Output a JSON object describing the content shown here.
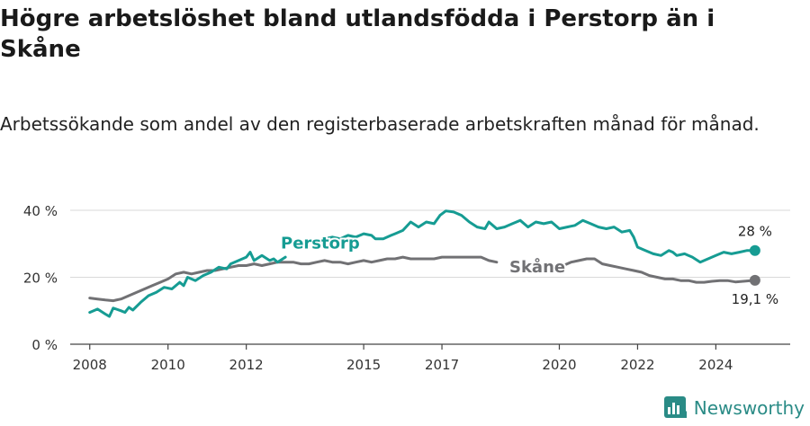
{
  "title": "Högre arbetslöshet bland utlandsfödda i Perstorp än i Skåne",
  "subtitle": "Arbetssökande som andel av den registerbaserade arbetskraften månad för månad.",
  "brand": {
    "name": "Newsworthy"
  },
  "chart_data": {
    "type": "line",
    "title": "Högre arbetslöshet bland utlandsfödda i Perstorp än i Skåne",
    "subtitle": "Arbetssökande som andel av den registerbaserade arbetskraften månad för månad.",
    "xlabel": "",
    "ylabel": "",
    "xlim": [
      2007.5,
      2025.9
    ],
    "ylim": [
      0,
      40
    ],
    "grid": true,
    "y_ticks": [
      0,
      20,
      40
    ],
    "y_tick_labels": [
      "0 %",
      "20 %",
      "40 %"
    ],
    "x_ticks": [
      2008,
      2010,
      2012,
      2015,
      2017,
      2020,
      2022,
      2024
    ],
    "x_tick_labels": [
      "2008",
      "2010",
      "2012",
      "2015",
      "2017",
      "2020",
      "2022",
      "2024"
    ],
    "series": [
      {
        "name": "Perstorp",
        "color": "#169c93",
        "end_label": "28 %",
        "points": [
          [
            2008.0,
            9.5
          ],
          [
            2008.2,
            10.5
          ],
          [
            2008.4,
            9.0
          ],
          [
            2008.5,
            8.3
          ],
          [
            2008.6,
            10.8
          ],
          [
            2008.8,
            10.0
          ],
          [
            2008.9,
            9.5
          ],
          [
            2009.0,
            11.0
          ],
          [
            2009.1,
            10.2
          ],
          [
            2009.3,
            12.5
          ],
          [
            2009.5,
            14.5
          ],
          [
            2009.7,
            15.5
          ],
          [
            2009.9,
            17.0
          ],
          [
            2010.1,
            16.5
          ],
          [
            2010.3,
            18.5
          ],
          [
            2010.4,
            17.5
          ],
          [
            2010.5,
            20.0
          ],
          [
            2010.7,
            19.0
          ],
          [
            2010.9,
            20.5
          ],
          [
            2011.1,
            21.5
          ],
          [
            2011.3,
            23.0
          ],
          [
            2011.5,
            22.5
          ],
          [
            2011.6,
            24.0
          ],
          [
            2011.8,
            25.0
          ],
          [
            2012.0,
            26.0
          ],
          [
            2012.1,
            27.5
          ],
          [
            2012.2,
            25.0
          ],
          [
            2012.4,
            26.5
          ],
          [
            2012.6,
            25.0
          ],
          [
            2012.7,
            25.5
          ],
          [
            2012.8,
            24.5
          ],
          [
            2013.0,
            26.0
          ],
          null,
          [
            2014.0,
            31.5
          ],
          [
            2014.2,
            32.0
          ],
          [
            2014.4,
            31.5
          ],
          [
            2014.6,
            32.5
          ],
          [
            2014.8,
            32.0
          ],
          [
            2015.0,
            33.0
          ],
          [
            2015.2,
            32.5
          ],
          [
            2015.3,
            31.5
          ],
          [
            2015.5,
            31.5
          ],
          [
            2015.7,
            32.5
          ],
          [
            2015.8,
            33.0
          ],
          [
            2016.0,
            34.0
          ],
          [
            2016.2,
            36.5
          ],
          [
            2016.4,
            35.0
          ],
          [
            2016.6,
            36.5
          ],
          [
            2016.8,
            36.0
          ],
          [
            2016.95,
            38.5
          ],
          [
            2017.1,
            39.8
          ],
          [
            2017.3,
            39.5
          ],
          [
            2017.5,
            38.5
          ],
          [
            2017.7,
            36.5
          ],
          [
            2017.9,
            35.0
          ],
          [
            2018.1,
            34.5
          ],
          [
            2018.2,
            36.5
          ],
          [
            2018.4,
            34.5
          ],
          [
            2018.6,
            35.0
          ],
          [
            2018.8,
            36.0
          ],
          [
            2019.0,
            37.0
          ],
          [
            2019.2,
            35.0
          ],
          [
            2019.4,
            36.5
          ],
          [
            2019.6,
            36.0
          ],
          [
            2019.8,
            36.5
          ],
          [
            2020.0,
            34.5
          ],
          [
            2020.2,
            35.0
          ],
          [
            2020.4,
            35.5
          ],
          [
            2020.6,
            37.0
          ],
          [
            2020.8,
            36.0
          ],
          [
            2021.0,
            35.0
          ],
          [
            2021.2,
            34.5
          ],
          [
            2021.4,
            35.0
          ],
          [
            2021.6,
            33.5
          ],
          [
            2021.8,
            34.0
          ],
          [
            2021.9,
            32.0
          ],
          [
            2022.0,
            29.0
          ],
          [
            2022.2,
            28.0
          ],
          [
            2022.4,
            27.0
          ],
          [
            2022.6,
            26.5
          ],
          [
            2022.8,
            28.0
          ],
          [
            2022.9,
            27.5
          ],
          [
            2023.0,
            26.5
          ],
          [
            2023.2,
            27.0
          ],
          [
            2023.4,
            26.0
          ],
          [
            2023.6,
            24.5
          ],
          [
            2023.8,
            25.5
          ],
          [
            2024.0,
            26.5
          ],
          [
            2024.2,
            27.5
          ],
          [
            2024.4,
            27.0
          ],
          [
            2024.6,
            27.5
          ],
          [
            2024.8,
            28.0
          ],
          [
            2025.0,
            28.0
          ]
        ]
      },
      {
        "name": "Skåne",
        "color": "#717174",
        "end_label": "19,1 %",
        "points": [
          [
            2008.0,
            13.8
          ],
          [
            2008.2,
            13.5
          ],
          [
            2008.4,
            13.2
          ],
          [
            2008.6,
            13.0
          ],
          [
            2008.8,
            13.5
          ],
          [
            2009.0,
            14.5
          ],
          [
            2009.2,
            15.5
          ],
          [
            2009.4,
            16.5
          ],
          [
            2009.6,
            17.5
          ],
          [
            2009.8,
            18.5
          ],
          [
            2010.0,
            19.5
          ],
          [
            2010.2,
            21.0
          ],
          [
            2010.4,
            21.5
          ],
          [
            2010.6,
            21.0
          ],
          [
            2010.8,
            21.5
          ],
          [
            2011.0,
            22.0
          ],
          [
            2011.2,
            22.0
          ],
          [
            2011.4,
            22.5
          ],
          [
            2011.6,
            23.0
          ],
          [
            2011.8,
            23.5
          ],
          [
            2012.0,
            23.5
          ],
          [
            2012.2,
            24.0
          ],
          [
            2012.4,
            23.5
          ],
          [
            2012.6,
            24.0
          ],
          [
            2012.8,
            24.5
          ],
          [
            2013.0,
            24.5
          ],
          [
            2013.2,
            24.5
          ],
          [
            2013.4,
            24.0
          ],
          [
            2013.6,
            24.0
          ],
          [
            2013.8,
            24.5
          ],
          [
            2014.0,
            25.0
          ],
          [
            2014.2,
            24.5
          ],
          [
            2014.4,
            24.5
          ],
          [
            2014.6,
            24.0
          ],
          [
            2014.8,
            24.5
          ],
          [
            2015.0,
            25.0
          ],
          [
            2015.2,
            24.5
          ],
          [
            2015.4,
            25.0
          ],
          [
            2015.6,
            25.5
          ],
          [
            2015.8,
            25.5
          ],
          [
            2016.0,
            26.0
          ],
          [
            2016.2,
            25.5
          ],
          [
            2016.4,
            25.5
          ],
          [
            2016.6,
            25.5
          ],
          [
            2016.8,
            25.5
          ],
          [
            2017.0,
            26.0
          ],
          [
            2017.2,
            26.0
          ],
          [
            2017.4,
            26.0
          ],
          [
            2017.6,
            26.0
          ],
          [
            2017.8,
            26.0
          ],
          [
            2018.0,
            26.0
          ],
          [
            2018.2,
            25.0
          ],
          [
            2018.4,
            24.5
          ],
          null,
          [
            2020.1,
            23.5
          ],
          [
            2020.3,
            24.5
          ],
          [
            2020.5,
            25.0
          ],
          [
            2020.7,
            25.5
          ],
          [
            2020.9,
            25.5
          ],
          [
            2021.1,
            24.0
          ],
          [
            2021.3,
            23.5
          ],
          [
            2021.5,
            23.0
          ],
          [
            2021.7,
            22.5
          ],
          [
            2021.9,
            22.0
          ],
          [
            2022.1,
            21.5
          ],
          [
            2022.3,
            20.5
          ],
          [
            2022.5,
            20.0
          ],
          [
            2022.7,
            19.5
          ],
          [
            2022.9,
            19.5
          ],
          [
            2023.1,
            19.0
          ],
          [
            2023.3,
            19.0
          ],
          [
            2023.5,
            18.5
          ],
          [
            2023.7,
            18.5
          ],
          [
            2023.9,
            18.8
          ],
          [
            2024.1,
            19.0
          ],
          [
            2024.3,
            19.0
          ],
          [
            2024.5,
            18.6
          ],
          [
            2024.7,
            18.8
          ],
          [
            2025.0,
            19.1
          ]
        ]
      }
    ]
  }
}
